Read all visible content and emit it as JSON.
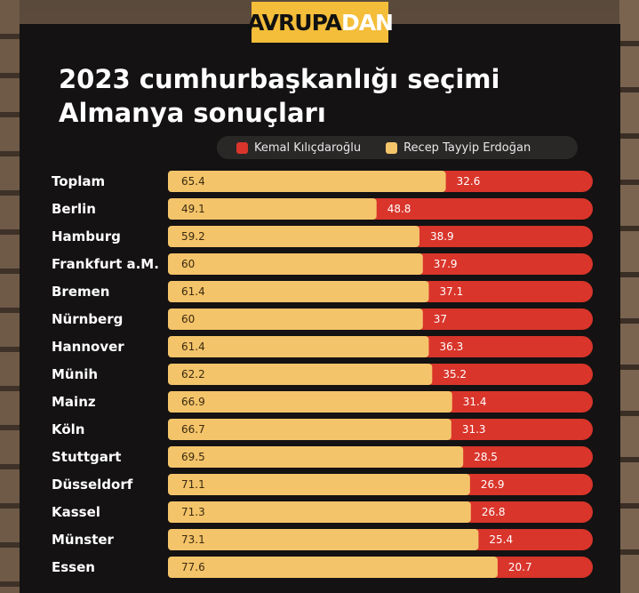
{
  "brand": {
    "part1": "AVRUPA",
    "part2": "DAN"
  },
  "title": {
    "line1": "2023 cumhurbaşkanlığı seçimi",
    "line2": "Almanya sonuçları"
  },
  "legend": [
    {
      "name": "Kemal Kılıçdaroğlu",
      "color": "#d9352b"
    },
    {
      "name": "Recep Tayyip Erdoğan",
      "color": "#f4c46a"
    }
  ],
  "chart_data": {
    "type": "bar",
    "orientation": "horizontal-stacked",
    "categories": [
      "Toplam",
      "Berlin",
      "Hamburg",
      "Frankfurt a.M.",
      "Bremen",
      "Nürnberg",
      "Hannover",
      "Münih",
      "Mainz",
      "Köln",
      "Stuttgart",
      "Düsseldorf",
      "Kassel",
      "Münster",
      "Essen"
    ],
    "series": [
      {
        "name": "Recep Tayyip Erdoğan",
        "color": "#f4c46a",
        "values": [
          "65.4",
          "49.1",
          "59.2",
          "60",
          "61.4",
          "60",
          "61.4",
          "62.2",
          "66.9",
          "66.7",
          "69.5",
          "71.1",
          "71.3",
          "73.1",
          "77.6"
        ]
      },
      {
        "name": "Kemal Kılıçdaroğlu",
        "color": "#d9352b",
        "values": [
          "32.6",
          "48.8",
          "38.9",
          "37.9",
          "37.1",
          "37",
          "36.3",
          "35.2",
          "31.4",
          "31.3",
          "28.5",
          "26.9",
          "26.8",
          "25.4",
          "20.7"
        ]
      }
    ],
    "xlim": [
      0,
      100
    ],
    "grid": false,
    "legend_position": "top-right"
  }
}
